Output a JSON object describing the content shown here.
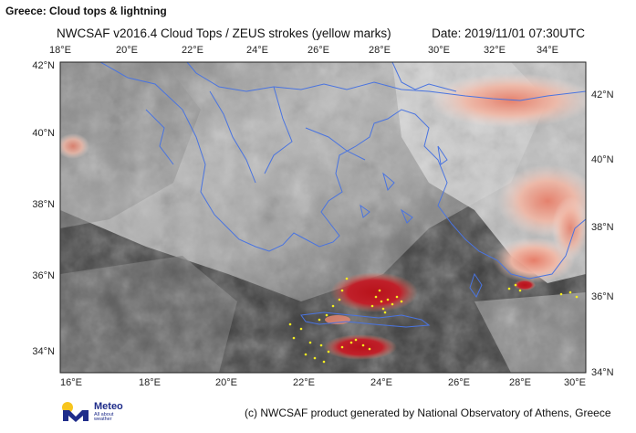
{
  "page": {
    "title": "Greece: Cloud tops & lightning"
  },
  "map": {
    "heading": "NWCSAF v2016.4 Cloud Tops / ZEUS strokes (yellow marks)",
    "date_label": "Date: 2019/11/01 07:30UTC",
    "top_lon_labels": [
      "18°E",
      "20°E",
      "22°E",
      "24°E",
      "26°E",
      "28°E",
      "30°E",
      "32°E",
      "34°E"
    ],
    "bottom_lon_labels": [
      "16°E",
      "18°E",
      "20°E",
      "22°E",
      "24°E",
      "26°E",
      "28°E",
      "30°E"
    ],
    "left_lat_labels": [
      "42°N",
      "40°N",
      "38°N",
      "36°N",
      "34°N"
    ],
    "right_lat_labels": [
      "42°N",
      "40°N",
      "38°N",
      "36°N",
      "34°N"
    ],
    "colors": {
      "coastline": "#4a74e0",
      "lightning": "#f5ee20",
      "high_cloud_core": "#b8121a",
      "high_cloud_edge": "#ec8870",
      "background": "#3a3a3a"
    }
  },
  "footer": {
    "logo_name": "Meteo",
    "logo_tagline": "All about weather",
    "logo_icon": "meteo-m-icon",
    "credit": "(c) NWCSAF product generated by National Observatory of Athens, Greece"
  }
}
